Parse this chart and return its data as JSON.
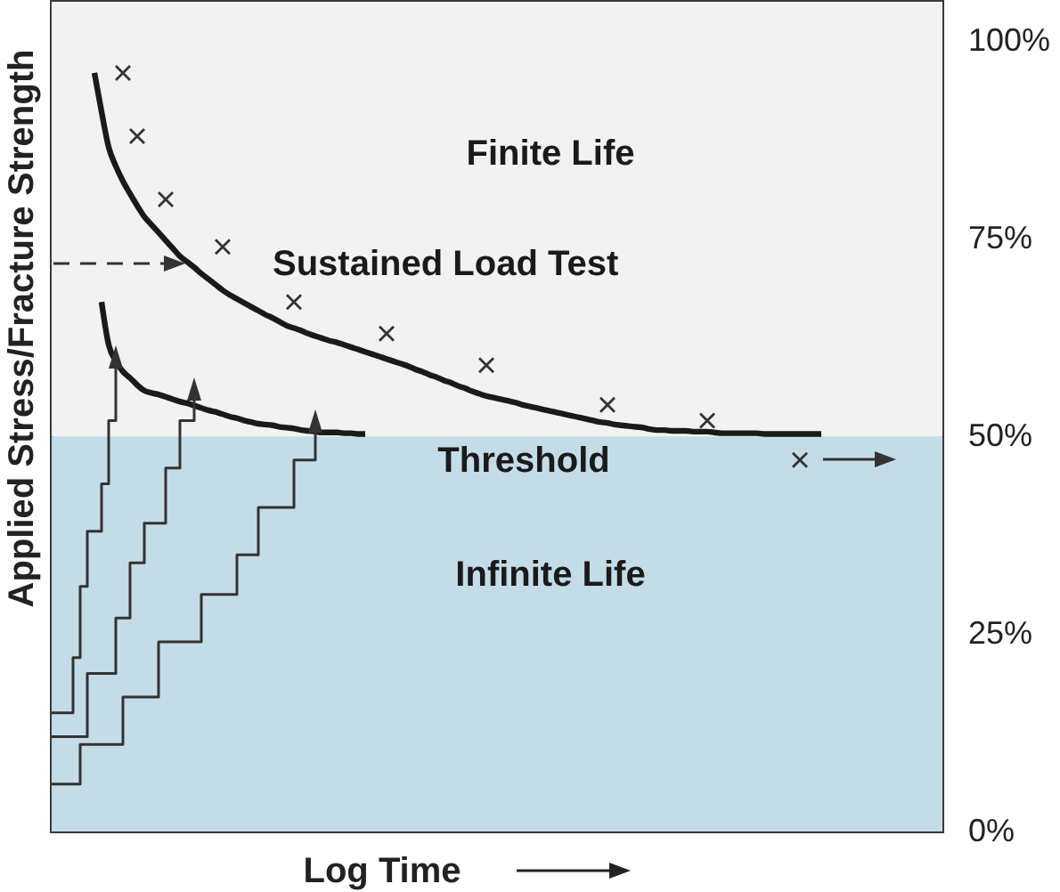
{
  "chart_data": {
    "type": "line",
    "categories": [
      null,
      null,
      null,
      null,
      null,
      null,
      null,
      null,
      null,
      null,
      null,
      null,
      null,
      null,
      null,
      null,
      null,
      null,
      null,
      null,
      null,
      null,
      null,
      null,
      null,
      null,
      null,
      null,
      null,
      null,
      null,
      null,
      null,
      null,
      null,
      null,
      null,
      null,
      null,
      null,
      null,
      null,
      null,
      null,
      null,
      null,
      null,
      null,
      null,
      null,
      null,
      null,
      null,
      null,
      null,
      null,
      null,
      null,
      null,
      null,
      null,
      null,
      null,
      null,
      null,
      null,
      null,
      null,
      null,
      null,
      null,
      null,
      null,
      null,
      null,
      null,
      null,
      null,
      null,
      null,
      null,
      null,
      null,
      null,
      null,
      null,
      null,
      null,
      null,
      null,
      null,
      null,
      null,
      null,
      null,
      null,
      null,
      null,
      null,
      null,
      null,
      null,
      null,
      null,
      null,
      null,
      null,
      null,
      null,
      null,
      null,
      null,
      null,
      null,
      null,
      null,
      null,
      null,
      null,
      null,
      null,
      null,
      null,
      null,
      null,
      null
    ],
    "ylim": [
      0,
      105
    ],
    "yticks": [
      {
        "value": 0,
        "label": "0%"
      },
      {
        "value": 25,
        "label": "25%"
      },
      {
        "value": 50,
        "label": "50%"
      },
      {
        "value": 75,
        "label": "75%"
      },
      {
        "value": 100,
        "label": "100%"
      }
    ],
    "tick_labels": "y",
    "xlabel": "Log Time",
    "ylabel": "Applied Stress/Fracture Strength",
    "bands": [
      {
        "axis": "y",
        "from": 50,
        "to": 105,
        "label": "Finite Life",
        "color": "#f2f2f2"
      },
      {
        "axis": "y",
        "from": 0,
        "to": 50,
        "label": "Infinite Life",
        "color": "#c4dce8"
      }
    ],
    "annotations": [
      {
        "text": "Threshold",
        "y": 50
      }
    ],
    "series": [
      {
        "name": "Sustained Load Test",
        "color": "#1a1a1a",
        "values": [
          null,
          null,
          null,
          null,
          null,
          null,
          96,
          91.1,
          86.6,
          84.2,
          82.3,
          80.7,
          79.2,
          77.8,
          76.8,
          75.8,
          74.8,
          73.8,
          72.8,
          72.1,
          71.4,
          70.6,
          69.9,
          69.2,
          68.5,
          67.9,
          67.4,
          66.9,
          66.4,
          65.9,
          65.4,
          65.0,
          64.5,
          64.0,
          63.7,
          63.4,
          63.0,
          62.7,
          62.4,
          62.1,
          61.9,
          61.6,
          61.3,
          61.0,
          60.7,
          60.4,
          60.1,
          59.8,
          59.5,
          59.2,
          58.9,
          58.5,
          58.2,
          57.8,
          57.5,
          57.1,
          56.8,
          56.4,
          56.1,
          55.7,
          55.4,
          55.1,
          54.9,
          54.7,
          54.5,
          54.3,
          54.0,
          53.8,
          53.6,
          53.4,
          53.2,
          53.0,
          52.8,
          52.6,
          52.4,
          52.2,
          52.0,
          51.8,
          51.7,
          51.5,
          51.4,
          51.3,
          51.2,
          51.1,
          50.9,
          50.8,
          50.8,
          50.7,
          50.7,
          50.7,
          50.6,
          50.6,
          50.6,
          50.5,
          50.4,
          50.4,
          50.4,
          50.4,
          50.4,
          50.4,
          50.3,
          50.3,
          50.3,
          50.3,
          50.3,
          50.3,
          50.3,
          50.3,
          50.3,
          null,
          null,
          null,
          null,
          null,
          null,
          null,
          null,
          null,
          null,
          null,
          null,
          null,
          null,
          null,
          null,
          null
        ]
      },
      {
        "color": "#1a1a1a",
        "values": [
          null,
          null,
          null,
          null,
          null,
          null,
          null,
          67,
          61.6,
          59.5,
          58.2,
          57.4,
          56.5,
          55.8,
          55.5,
          55.3,
          55.0,
          54.7,
          54.4,
          54.2,
          53.9,
          53.6,
          53.3,
          53.1,
          52.8,
          52.5,
          52.3,
          52.0,
          51.8,
          51.6,
          51.5,
          51.4,
          51.2,
          51.1,
          51.0,
          50.8,
          50.7,
          50.6,
          50.5,
          50.5,
          50.5,
          50.4,
          50.4,
          50.3,
          50.3,
          null,
          null,
          null,
          null,
          null,
          null,
          null,
          null,
          null,
          null,
          null,
          null,
          null,
          null,
          null,
          null,
          null,
          null,
          null,
          null,
          null,
          null,
          null,
          null,
          null,
          null,
          null,
          null,
          null,
          null,
          null,
          null,
          null,
          null,
          null,
          null,
          null,
          null,
          null,
          null,
          null,
          null,
          null,
          null,
          null,
          null,
          null,
          null,
          null,
          null,
          null,
          null,
          null,
          null,
          null,
          null,
          null,
          null,
          null,
          null,
          null,
          null,
          null,
          null,
          null,
          null,
          null,
          null,
          null,
          null,
          null,
          null,
          null,
          null,
          null,
          null,
          null,
          null,
          null,
          null,
          null
        ]
      },
      {
        "type": "scatter",
        "color": "#333333",
        "marker": "cross",
        "values": [
          null,
          null,
          null,
          null,
          null,
          null,
          null,
          null,
          null,
          null,
          96,
          null,
          88,
          null,
          null,
          null,
          80,
          null,
          null,
          null,
          null,
          null,
          null,
          null,
          74,
          null,
          null,
          null,
          null,
          null,
          null,
          null,
          null,
          null,
          67,
          null,
          null,
          null,
          null,
          null,
          null,
          null,
          null,
          null,
          null,
          null,
          null,
          63,
          null,
          null,
          null,
          null,
          null,
          null,
          null,
          null,
          null,
          null,
          null,
          null,
          null,
          59,
          null,
          null,
          null,
          null,
          null,
          null,
          null,
          null,
          null,
          null,
          null,
          null,
          null,
          null,
          null,
          null,
          54,
          null,
          null,
          null,
          null,
          null,
          null,
          null,
          null,
          null,
          null,
          null,
          null,
          null,
          52,
          null,
          null,
          null,
          null,
          null,
          null,
          null,
          null,
          null,
          null,
          null,
          null,
          47,
          null,
          null,
          null,
          null,
          null,
          null,
          null,
          null,
          null,
          null,
          null,
          null,
          null,
          null,
          null,
          null,
          null,
          null,
          null,
          null
        ]
      },
      {
        "type": "step",
        "color": "#333333",
        "values": [
          15,
          15,
          15,
          22,
          31,
          38,
          38,
          44,
          52,
          60,
          null,
          null,
          null,
          null,
          null,
          null,
          null,
          null,
          null,
          null,
          null,
          null,
          null,
          null,
          null,
          null,
          null,
          null,
          null,
          null,
          null,
          null,
          null,
          null,
          null,
          null,
          null,
          null,
          null,
          null,
          null,
          null,
          null,
          null,
          null,
          null,
          null,
          null,
          null,
          null,
          null,
          null,
          null,
          null,
          null,
          null,
          null,
          null,
          null,
          null,
          null,
          null,
          null,
          null,
          null,
          null,
          null,
          null,
          null,
          null,
          null,
          null,
          null,
          null,
          null,
          null,
          null,
          null,
          null,
          null,
          null,
          null,
          null,
          null,
          null,
          null,
          null,
          null,
          null,
          null,
          null,
          null,
          null,
          null,
          null,
          null,
          null,
          null,
          null,
          null,
          null,
          null,
          null,
          null,
          null,
          null,
          null,
          null,
          null,
          null,
          null,
          null,
          null,
          null,
          null,
          null,
          null,
          null,
          null,
          null,
          null,
          null,
          null,
          null,
          null,
          null
        ]
      },
      {
        "type": "step",
        "color": "#333333",
        "values": [
          12,
          12,
          12,
          12,
          12,
          20,
          20,
          20,
          20,
          27,
          27,
          34,
          34,
          39,
          39,
          39,
          46,
          46,
          52,
          52,
          56,
          null,
          null,
          null,
          null,
          null,
          null,
          null,
          null,
          null,
          null,
          null,
          null,
          null,
          null,
          null,
          null,
          null,
          null,
          null,
          null,
          null,
          null,
          null,
          null,
          null,
          null,
          null,
          null,
          null,
          null,
          null,
          null,
          null,
          null,
          null,
          null,
          null,
          null,
          null,
          null,
          null,
          null,
          null,
          null,
          null,
          null,
          null,
          null,
          null,
          null,
          null,
          null,
          null,
          null,
          null,
          null,
          null,
          null,
          null,
          null,
          null,
          null,
          null,
          null,
          null,
          null,
          null,
          null,
          null,
          null,
          null,
          null,
          null,
          null,
          null,
          null,
          null,
          null,
          null,
          null,
          null,
          null,
          null,
          null,
          null,
          null,
          null,
          null,
          null,
          null,
          null,
          null,
          null,
          null,
          null,
          null,
          null,
          null,
          null,
          null,
          null,
          null,
          null,
          null,
          null
        ]
      },
      {
        "type": "step",
        "color": "#333333",
        "values": [
          6,
          6,
          6,
          6,
          11,
          11,
          11,
          11,
          11,
          11,
          17,
          17,
          17,
          17,
          17,
          24,
          24,
          24,
          24,
          24,
          24,
          30,
          30,
          30,
          30,
          30,
          35,
          35,
          35,
          41,
          41,
          41,
          41,
          41,
          47,
          47,
          47,
          52,
          null,
          null,
          null,
          null,
          null,
          null,
          null,
          null,
          null,
          null,
          null,
          null,
          null,
          null,
          null,
          null,
          null,
          null,
          null,
          null,
          null,
          null,
          null,
          null,
          null,
          null,
          null,
          null,
          null,
          null,
          null,
          null,
          null,
          null,
          null,
          null,
          null,
          null,
          null,
          null,
          null,
          null,
          null,
          null,
          null,
          null,
          null,
          null,
          null,
          null,
          null,
          null,
          null,
          null,
          null,
          null,
          null,
          null,
          null,
          null,
          null,
          null,
          null,
          null,
          null,
          null,
          null,
          null,
          null,
          null,
          null,
          null,
          null,
          null,
          null,
          null,
          null,
          null,
          null,
          null,
          null,
          null,
          null,
          null,
          null,
          null,
          null,
          null
        ]
      }
    ]
  }
}
